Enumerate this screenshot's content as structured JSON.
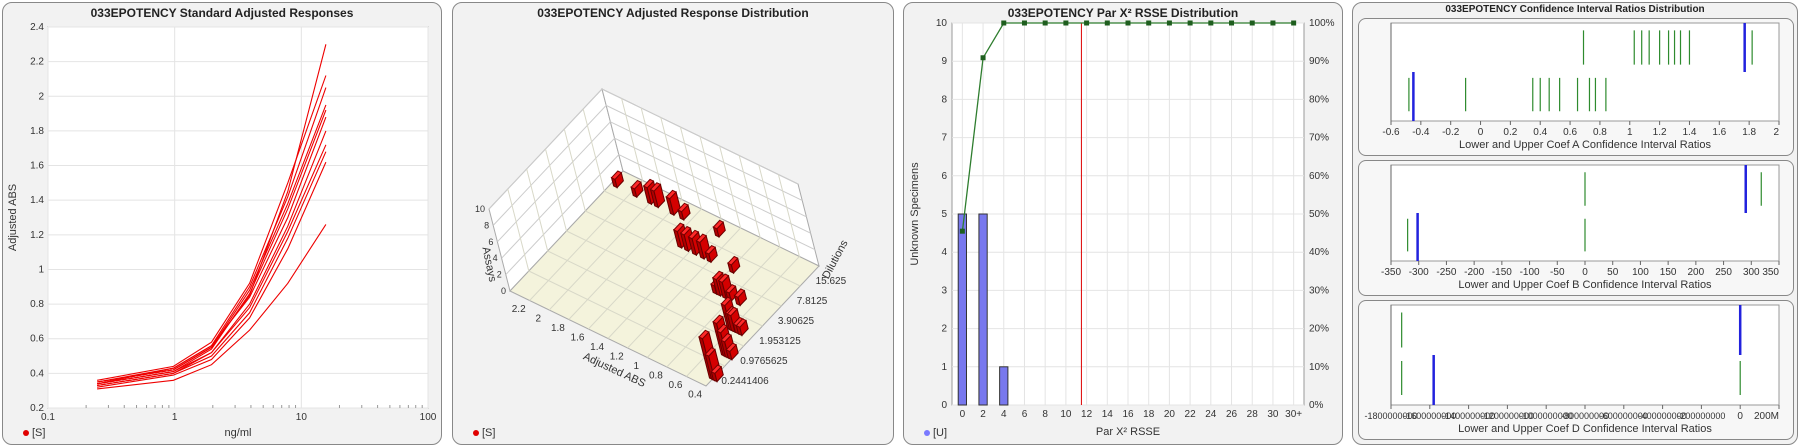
{
  "panels": {
    "p1": {
      "title": "033EPOTENCY Standard Adjusted Responses",
      "legend": "[S]",
      "legend_color": "#e00000"
    },
    "p2": {
      "title": "033EPOTENCY Adjusted Response Distribution",
      "legend": "[S]",
      "legend_color": "#e00000"
    },
    "p3": {
      "title": "033EPOTENCY Par X² RSSE Distribution",
      "legend": "[U]",
      "legend_color": "#7a7aff"
    },
    "p4": {
      "title": "033EPOTENCY Confidence Interval Ratios Distribution"
    }
  },
  "chart_data": [
    {
      "type": "line",
      "title": "033EPOTENCY Standard Adjusted Responses",
      "xlabel": "ng/ml",
      "ylabel": "Adjusted ABS",
      "xscale": "log",
      "xlim": [
        0.1,
        100
      ],
      "ylim": [
        0.2,
        2.4
      ],
      "x_ticks": [
        "0.1",
        "1",
        "10",
        "100"
      ],
      "y_ticks": [
        "0.2",
        "0.4",
        "0.6",
        "0.8",
        "1",
        "1.2",
        "1.4",
        "1.6",
        "1.8",
        "2",
        "2.2",
        "2.4"
      ],
      "color": "#ee0000",
      "x": [
        0.244,
        0.977,
        1.953,
        3.906,
        7.813,
        15.625
      ],
      "series": [
        {
          "values": [
            0.35,
            0.42,
            0.55,
            0.85,
            1.45,
            2.3
          ]
        },
        {
          "values": [
            0.36,
            0.44,
            0.58,
            0.92,
            1.5,
            2.12
          ]
        },
        {
          "values": [
            0.34,
            0.43,
            0.56,
            0.9,
            1.42,
            2.05
          ]
        },
        {
          "values": [
            0.35,
            0.42,
            0.55,
            0.88,
            1.38,
            1.95
          ]
        },
        {
          "values": [
            0.34,
            0.41,
            0.54,
            0.86,
            1.35,
            1.92
          ]
        },
        {
          "values": [
            0.35,
            0.43,
            0.56,
            0.84,
            1.3,
            1.88
          ]
        },
        {
          "values": [
            0.33,
            0.4,
            0.52,
            0.8,
            1.25,
            1.8
          ]
        },
        {
          "values": [
            0.34,
            0.41,
            0.52,
            0.78,
            1.22,
            1.72
          ]
        },
        {
          "values": [
            0.33,
            0.4,
            0.5,
            0.75,
            1.18,
            1.68
          ]
        },
        {
          "values": [
            0.32,
            0.39,
            0.48,
            0.72,
            1.12,
            1.62
          ]
        },
        {
          "values": [
            0.31,
            0.36,
            0.45,
            0.65,
            0.92,
            1.26
          ]
        }
      ]
    },
    {
      "type": "bar3d",
      "title": "033EPOTENCY Adjusted Response Distribution",
      "xlabel": "Adjusted ABS",
      "ylabel": "Dilutions",
      "zlabel": "Assays",
      "x_ticks": [
        "2.2",
        "2",
        "1.8",
        "1.6",
        "1.4",
        "1.2",
        "1",
        "0.8",
        "0.6",
        "0.4"
      ],
      "y_ticks": [
        "0.2441406",
        "0.9765625",
        "1.953125",
        "3.90625",
        "7.8125",
        "15.625"
      ],
      "z_ticks": [
        "0",
        "2",
        "4",
        "6",
        "8",
        "10"
      ],
      "color": "#ee0000",
      "bars": [
        {
          "abs": 0.36,
          "dilution": "0.2441406",
          "assays": 5
        },
        {
          "abs": 0.34,
          "dilution": "0.2441406",
          "assays": 3
        },
        {
          "abs": 0.32,
          "dilution": "0.2441406",
          "assays": 1
        },
        {
          "abs": 0.43,
          "dilution": "0.9765625",
          "assays": 4
        },
        {
          "abs": 0.41,
          "dilution": "0.9765625",
          "assays": 3
        },
        {
          "abs": 0.39,
          "dilution": "0.9765625",
          "assays": 2
        },
        {
          "abs": 0.36,
          "dilution": "0.9765625",
          "assays": 1
        },
        {
          "abs": 0.56,
          "dilution": "1.953125",
          "assays": 3
        },
        {
          "abs": 0.54,
          "dilution": "1.953125",
          "assays": 2
        },
        {
          "abs": 0.52,
          "dilution": "1.953125",
          "assays": 2
        },
        {
          "abs": 0.48,
          "dilution": "1.953125",
          "assays": 1
        },
        {
          "abs": 0.45,
          "dilution": "1.953125",
          "assays": 1
        },
        {
          "abs": 0.9,
          "dilution": "3.90625",
          "assays": 1
        },
        {
          "abs": 0.86,
          "dilution": "3.90625",
          "assays": 2
        },
        {
          "abs": 0.8,
          "dilution": "3.90625",
          "assays": 2
        },
        {
          "abs": 0.75,
          "dilution": "3.90625",
          "assays": 1
        },
        {
          "abs": 0.66,
          "dilution": "3.90625",
          "assays": 1
        },
        {
          "abs": 1.45,
          "dilution": "7.8125",
          "assays": 2
        },
        {
          "abs": 1.38,
          "dilution": "7.8125",
          "assays": 2
        },
        {
          "abs": 1.3,
          "dilution": "7.8125",
          "assays": 2
        },
        {
          "abs": 1.22,
          "dilution": "7.8125",
          "assays": 2
        },
        {
          "abs": 1.15,
          "dilution": "7.8125",
          "assays": 1
        },
        {
          "abs": 0.92,
          "dilution": "7.8125",
          "assays": 1
        },
        {
          "abs": 2.3,
          "dilution": "15.625",
          "assays": 1
        },
        {
          "abs": 2.1,
          "dilution": "15.625",
          "assays": 1
        },
        {
          "abs": 1.95,
          "dilution": "15.625",
          "assays": 2
        },
        {
          "abs": 1.88,
          "dilution": "15.625",
          "assays": 2
        },
        {
          "abs": 1.72,
          "dilution": "15.625",
          "assays": 2
        },
        {
          "abs": 1.62,
          "dilution": "15.625",
          "assays": 1
        },
        {
          "abs": 1.26,
          "dilution": "15.625",
          "assays": 1
        }
      ]
    },
    {
      "type": "bar",
      "title": "033EPOTENCY Par X² RSSE Distribution",
      "xlabel": "Par X² RSSE",
      "ylabel": "Unknown Specimens",
      "x_ticks": [
        "0",
        "2",
        "4",
        "6",
        "8",
        "10",
        "12",
        "14",
        "16",
        "18",
        "20",
        "22",
        "24",
        "26",
        "28",
        "30",
        "30+"
      ],
      "y_ticks": [
        "0",
        "1",
        "2",
        "3",
        "4",
        "5",
        "6",
        "7",
        "8",
        "9",
        "10"
      ],
      "y2_ticks": [
        "0%",
        "10%",
        "20%",
        "30%",
        "40%",
        "50%",
        "60%",
        "70%",
        "80%",
        "90%",
        "100%"
      ],
      "ylim": [
        0,
        10
      ],
      "bar_color": "#7878ee",
      "bars": [
        {
          "x": 0,
          "value": 5
        },
        {
          "x": 2,
          "value": 5
        },
        {
          "x": 4,
          "value": 1
        }
      ],
      "cumulative_color": "#2e7d2e",
      "cumulative_percent": [
        {
          "x": 0,
          "value": 45.5
        },
        {
          "x": 2,
          "value": 90.9
        },
        {
          "x": 4,
          "value": 100
        },
        {
          "x": 6,
          "value": 100
        },
        {
          "x": 8,
          "value": 100
        },
        {
          "x": 10,
          "value": 100
        },
        {
          "x": 12,
          "value": 100
        },
        {
          "x": 14,
          "value": 100
        },
        {
          "x": 16,
          "value": 100
        },
        {
          "x": 18,
          "value": 100
        },
        {
          "x": 20,
          "value": 100
        },
        {
          "x": 22,
          "value": 100
        },
        {
          "x": 24,
          "value": 100
        },
        {
          "x": 26,
          "value": 100
        },
        {
          "x": 28,
          "value": 100
        },
        {
          "x": 30,
          "value": 100
        },
        {
          "x": 32,
          "value": 100
        }
      ],
      "reference_line": {
        "x": 11.5,
        "color": "#dd0000"
      }
    },
    {
      "type": "strip",
      "xlabel": "Lower and Upper Coef A Confidence Interval Ratios",
      "xlim": [
        -0.6,
        2
      ],
      "x_ticks": [
        "-0.6",
        "-0.4",
        "-0.2",
        "0",
        "0.2",
        "0.4",
        "0.6",
        "0.8",
        "1",
        "1.2",
        "1.4",
        "1.6",
        "1.8",
        "2"
      ],
      "x_tick_values": [
        -0.6,
        -0.4,
        -0.2,
        0,
        0.2,
        0.4,
        0.6,
        0.8,
        1,
        1.2,
        1.4,
        1.6,
        1.8,
        2
      ],
      "upper_row": [
        0.69,
        1.03,
        1.08,
        1.13,
        1.2,
        1.26,
        1.3,
        1.34,
        1.4,
        1.82
      ],
      "lower_row": [
        -0.48,
        -0.1,
        0.35,
        0.4,
        0.46,
        0.53,
        0.65,
        0.73,
        0.77,
        0.84
      ],
      "mark_upper": 1.77,
      "mark_lower": -0.45,
      "tick_color": "#2e8b2e",
      "mark_color": "#2222dd"
    },
    {
      "type": "strip",
      "xlabel": "Lower and Upper Coef B Confidence Interval Ratios",
      "xlim": [
        -350,
        350
      ],
      "x_ticks": [
        "-350",
        "-300",
        "-250",
        "-200",
        "-150",
        "-100",
        "-50",
        "0",
        "50",
        "100",
        "150",
        "200",
        "250",
        "300",
        "350"
      ],
      "x_tick_values": [
        -350,
        -300,
        -250,
        -200,
        -150,
        -100,
        -50,
        0,
        50,
        100,
        150,
        200,
        250,
        300,
        350
      ],
      "upper_row": [
        0,
        318
      ],
      "lower_row": [
        -320,
        0
      ],
      "mark_upper": 290,
      "mark_lower": -302,
      "tick_color": "#2e8b2e",
      "mark_color": "#2222dd"
    },
    {
      "type": "strip",
      "xlabel": "Lower and Upper Coef D Confidence Interval Ratios",
      "xlim": [
        -1800000000,
        200000000
      ],
      "x_ticks": [
        "-1800000000",
        "-1600000000",
        "-1400000000",
        "-1200000000",
        "-1000000000",
        "-800000000",
        "-600000000",
        "-400000000",
        "-200000000",
        "0",
        "200M"
      ],
      "x_tick_values": [
        -1800000000,
        -1600000000,
        -1400000000,
        -1200000000,
        -1000000000,
        -800000000,
        -600000000,
        -400000000,
        -200000000,
        0,
        200000000
      ],
      "upper_row": [
        -1745000000
      ],
      "lower_row": [
        -1745000000,
        0
      ],
      "mark_upper": 0,
      "mark_lower": -1580000000,
      "tick_color": "#2e8b2e",
      "mark_color": "#2222dd"
    }
  ]
}
